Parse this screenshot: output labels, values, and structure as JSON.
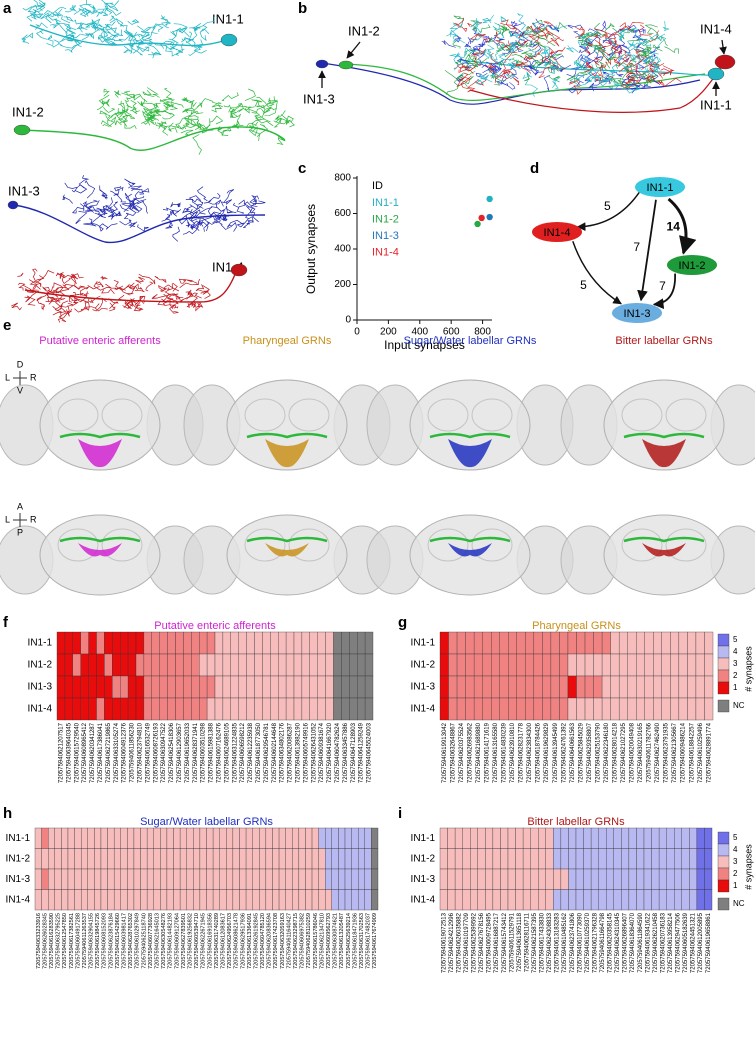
{
  "panel_labels": [
    "a",
    "b",
    "c",
    "d",
    "e",
    "f",
    "g",
    "h",
    "i"
  ],
  "neurons": [
    "IN1-1",
    "IN1-2",
    "IN1-3",
    "IN1-4"
  ],
  "chart_data": {
    "type": "scatter",
    "xlabel": "Input synapses",
    "ylabel": "Output synapses",
    "legend_title": "ID",
    "xlim": [
      0,
      860
    ],
    "ylim": [
      0,
      800
    ],
    "xticks": [
      0,
      200,
      400,
      600,
      800
    ],
    "yticks": [
      0,
      200,
      400,
      600,
      800
    ],
    "series": [
      {
        "name": "IN1-1",
        "color": "#23b1c4",
        "x": [
          845
        ],
        "values": [
          682
        ]
      },
      {
        "name": "IN1-2",
        "color": "#27a844",
        "x": [
          768
        ],
        "values": [
          541
        ]
      },
      {
        "name": "IN1-3",
        "color": "#2478b8",
        "x": [
          845
        ],
        "values": [
          580
        ]
      },
      {
        "name": "IN1-4",
        "color": "#e8202a",
        "x": [
          794
        ],
        "values": [
          575
        ]
      }
    ]
  },
  "network": {
    "nodes": [
      {
        "label": "IN1-1",
        "color": "#38c8e0"
      },
      {
        "label": "IN1-2",
        "color": "#1e9a3a"
      },
      {
        "label": "IN1-3",
        "color": "#6aaee0"
      },
      {
        "label": "IN1-4",
        "color": "#e02020"
      }
    ],
    "edges": [
      {
        "from": 0,
        "to": 3,
        "weight": 5
      },
      {
        "from": 0,
        "to": 1,
        "weight": 14
      },
      {
        "from": 0,
        "to": 2,
        "weight": 7
      },
      {
        "from": 3,
        "to": 2,
        "weight": 5
      },
      {
        "from": 1,
        "to": 2,
        "weight": 7
      }
    ]
  },
  "brains": {
    "classes": [
      {
        "name": "Putative enteric afferents",
        "color": "#d023d0"
      },
      {
        "name": "Pharyngeal GRNs",
        "color": "#c8901a"
      },
      {
        "name": "Sugar/Water labellar GRNs",
        "color": "#2030c0"
      },
      {
        "name": "Bitter labellar GRNs",
        "color": "#b01818"
      }
    ],
    "axes_front": [
      "D",
      "L",
      "R",
      "V"
    ],
    "axes_top": [
      "A",
      "L",
      "R",
      "P"
    ]
  },
  "legend": {
    "title": "# synapses",
    "levels": [
      5,
      4,
      3,
      2,
      1
    ],
    "colors": [
      "#7070e8",
      "#b9b9f2",
      "#f7bcbc",
      "#f08282",
      "#e80c0c"
    ],
    "nc_label": "NC",
    "nc_color": "#7f7f7f"
  },
  "heatmaps": [
    {
      "title": "Putative enteric afferents",
      "color": "#d023d0",
      "ids": [
        "720575940621207517",
        "720575940639640345",
        "720575940615729540",
        "720575940608965412",
        "720575940620341287",
        "720575940617386041",
        "720575940627219865",
        "720575940633105274",
        "720575940604912376",
        "720575940611856230",
        "720575940623794810",
        "720575940616532749",
        "720575940608726193",
        "720575940630947522",
        "720575940625418306",
        "720575940612903657",
        "720575940619652033",
        "720575940628371941",
        "720575940603510298",
        "720575940615981388",
        "720575940607162476",
        "720575940624689105",
        "720575940631224835",
        "720575940606598212",
        "720575940612235938",
        "720575940618773050",
        "720575940629546781",
        "720575940602144648",
        "720575940634802176",
        "720575940620086287",
        "720575940613982190",
        "720575940605749916",
        "720575940626431052",
        "720575940609381674",
        "720575940641667920",
        "720575940604782624",
        "720575940633457886",
        "720575940647128903",
        "720575940641259249",
        "720575940645524003"
      ],
      "rows": [
        [
          1,
          1,
          1,
          2,
          1,
          2,
          1,
          1,
          1,
          1,
          1,
          2,
          2,
          2,
          2,
          2,
          2,
          2,
          2,
          2,
          3,
          3,
          3,
          3,
          3,
          3,
          3,
          3,
          3,
          3,
          3,
          3,
          3,
          3,
          3,
          null,
          null,
          null,
          null,
          null
        ],
        [
          1,
          1,
          2,
          1,
          1,
          1,
          2,
          1,
          1,
          1,
          2,
          2,
          2,
          2,
          2,
          2,
          2,
          2,
          3,
          3,
          3,
          3,
          3,
          3,
          3,
          3,
          3,
          3,
          3,
          3,
          3,
          3,
          3,
          3,
          3,
          null,
          null,
          null,
          null,
          null
        ],
        [
          1,
          1,
          1,
          1,
          1,
          1,
          1,
          2,
          2,
          1,
          1,
          2,
          2,
          2,
          2,
          2,
          2,
          2,
          2,
          2,
          3,
          3,
          3,
          3,
          3,
          3,
          3,
          3,
          3,
          3,
          3,
          3,
          3,
          3,
          3,
          null,
          null,
          null,
          null,
          null
        ],
        [
          1,
          1,
          1,
          1,
          1,
          2,
          1,
          1,
          1,
          1,
          1,
          2,
          2,
          2,
          2,
          2,
          2,
          2,
          2,
          3,
          3,
          3,
          3,
          3,
          3,
          3,
          3,
          3,
          3,
          3,
          3,
          3,
          3,
          3,
          3,
          null,
          null,
          null,
          null,
          null
        ]
      ]
    },
    {
      "title": "Pharyngeal GRNs",
      "color": "#c8901a",
      "ids": [
        "720575940619913042",
        "720575940632648867",
        "720575940620375524",
        "720575940626983562",
        "720575940621689880",
        "720575940614171619",
        "720575940613165580",
        "720575940614830239",
        "720575940623910810",
        "720575940628231778",
        "720575940623834300",
        "720575940618784426",
        "720575940619629829",
        "720575940613945499",
        "720575940624761392",
        "720575940640661563",
        "720575940625845029",
        "720575940629358807",
        "720575940625153790",
        "720575940622346180",
        "720575940628014218",
        "720575940621027295",
        "720575940620049408",
        "720575940630219165",
        "720575940611782766",
        "720575940627462490",
        "720575940623791935",
        "720575940621305667",
        "720575940609486214",
        "720575940618842257",
        "720575940610259496",
        "720575940628891774"
      ],
      "rows": [
        [
          1,
          2,
          2,
          2,
          2,
          2,
          2,
          2,
          2,
          2,
          2,
          2,
          2,
          2,
          2,
          2,
          2,
          2,
          2,
          2,
          3,
          3,
          3,
          3,
          3,
          3,
          3,
          3,
          3,
          3,
          3,
          3
        ],
        [
          1,
          2,
          2,
          2,
          2,
          2,
          2,
          2,
          2,
          2,
          2,
          2,
          2,
          2,
          2,
          3,
          3,
          3,
          3,
          3,
          3,
          3,
          3,
          3,
          3,
          3,
          3,
          3,
          3,
          3,
          3,
          3
        ],
        [
          1,
          2,
          2,
          2,
          2,
          2,
          2,
          2,
          2,
          2,
          2,
          2,
          2,
          2,
          2,
          1,
          2,
          2,
          2,
          3,
          3,
          3,
          3,
          3,
          3,
          3,
          3,
          3,
          3,
          3,
          3,
          3
        ],
        [
          1,
          2,
          2,
          2,
          2,
          2,
          2,
          2,
          2,
          2,
          2,
          2,
          2,
          2,
          2,
          3,
          3,
          3,
          3,
          3,
          3,
          3,
          3,
          3,
          3,
          3,
          3,
          3,
          3,
          3,
          3,
          3
        ]
      ]
    },
    {
      "title": "Sugar/Water labellar GRNs",
      "color": "#2030c0",
      "ids": [
        "720575940633233916",
        "720575940626028345",
        "720575940616283590",
        "720575940632795225",
        "720575940612547850",
        "720575940617382561",
        "720575940604917288",
        "720575940611263537",
        "720575940632904155",
        "720575940619845726",
        "720575940608152093",
        "720575940623876184",
        "720575940615429660",
        "720575940603981417",
        "720575940628765302",
        "720575940610297849",
        "720575940625118740",
        "720575940607736928",
        "720575940621645013",
        "720575940630548276",
        "720575940614482193",
        "720575940609127064",
        "720575940627839501",
        "720575940619256832",
        "720575940605394710",
        "720575940622671945",
        "720575940616918356",
        "720575940631740289",
        "720575940612083617",
        "720575940624956703",
        "720575940608621478",
        "720575940629517936",
        "720575940613364091",
        "720575940626192845",
        "720575940604785120",
        "720575940620836594",
        "720575940617423708",
        "720575940632059163",
        "720575940611640427",
        "720575940623298715",
        "720575940606975382",
        "720575940628110259",
        "720575940615786046",
        "720575940621347810",
        "720575940609562793",
        "720575940630874621",
        "720575940613205487",
        "720575940625639214",
        "720575940618471936",
        "720575940631702563",
        "720575940617482037",
        "720575940617674909"
      ],
      "rows": [
        [
          3,
          2,
          3,
          3,
          3,
          3,
          3,
          3,
          3,
          3,
          3,
          3,
          3,
          3,
          3,
          3,
          3,
          3,
          3,
          3,
          3,
          3,
          3,
          3,
          3,
          3,
          3,
          3,
          3,
          3,
          3,
          3,
          3,
          3,
          3,
          3,
          3,
          3,
          3,
          3,
          3,
          3,
          3,
          4,
          4,
          4,
          4,
          4,
          4,
          4,
          4,
          null
        ],
        [
          3,
          3,
          3,
          3,
          3,
          3,
          3,
          3,
          3,
          3,
          3,
          3,
          3,
          3,
          3,
          3,
          3,
          3,
          3,
          3,
          3,
          3,
          3,
          3,
          3,
          3,
          3,
          3,
          3,
          3,
          3,
          3,
          3,
          3,
          3,
          3,
          3,
          3,
          3,
          3,
          3,
          3,
          3,
          3,
          4,
          4,
          4,
          4,
          4,
          4,
          4,
          null
        ],
        [
          3,
          2,
          3,
          3,
          3,
          3,
          3,
          3,
          3,
          3,
          3,
          3,
          3,
          3,
          3,
          3,
          3,
          3,
          3,
          3,
          3,
          3,
          3,
          3,
          3,
          3,
          3,
          3,
          3,
          3,
          3,
          3,
          3,
          3,
          3,
          3,
          3,
          3,
          3,
          3,
          3,
          3,
          3,
          3,
          4,
          4,
          4,
          4,
          4,
          4,
          4,
          null
        ],
        [
          3,
          3,
          3,
          3,
          3,
          3,
          3,
          3,
          3,
          3,
          3,
          3,
          3,
          3,
          3,
          3,
          3,
          3,
          3,
          3,
          3,
          3,
          3,
          3,
          3,
          3,
          3,
          3,
          3,
          3,
          3,
          3,
          3,
          3,
          3,
          3,
          3,
          3,
          3,
          3,
          3,
          3,
          3,
          3,
          3,
          4,
          4,
          4,
          4,
          4,
          4,
          null
        ]
      ]
    },
    {
      "title": "Bitter labellar GRNs",
      "color": "#b01818",
      "ids": [
        "720575940619072513",
        "720575940624212996",
        "720575940626035882",
        "720575940610197709",
        "720575940625399592",
        "720575940627678156",
        "720575940609728495",
        "720575940616887217",
        "720575940615743412",
        "720575940611529791",
        "720575940613651118",
        "720575940628116711",
        "720575940621587395",
        "720575940617433830",
        "720575940624308833",
        "720575940613183283",
        "720575940610485162",
        "720575940623741806",
        "720575940610773090",
        "720575940610259370",
        "720575940621796328",
        "720575940611664798",
        "720575940620358145",
        "720575940624310345",
        "720575940626896407",
        "720575940618364070",
        "720575940611864590",
        "720575940619341622",
        "720575940626210458",
        "720575940620736183",
        "720575940613958214",
        "720575940629477506",
        "720575940605182639",
        "720575940624451321",
        "720575940612005895",
        "720575940619658861"
      ],
      "rows": [
        [
          3,
          3,
          3,
          3,
          3,
          3,
          3,
          3,
          3,
          3,
          3,
          3,
          3,
          3,
          3,
          4,
          4,
          4,
          4,
          4,
          4,
          4,
          4,
          4,
          4,
          4,
          4,
          4,
          4,
          4,
          4,
          4,
          4,
          4,
          5,
          5
        ],
        [
          3,
          3,
          3,
          3,
          3,
          3,
          3,
          3,
          3,
          3,
          3,
          3,
          3,
          3,
          3,
          4,
          4,
          4,
          4,
          4,
          4,
          4,
          4,
          4,
          4,
          4,
          4,
          4,
          4,
          4,
          4,
          4,
          4,
          4,
          5,
          5
        ],
        [
          3,
          3,
          3,
          3,
          3,
          3,
          3,
          3,
          3,
          3,
          3,
          3,
          3,
          3,
          3,
          3,
          3,
          4,
          4,
          4,
          4,
          4,
          4,
          4,
          4,
          4,
          4,
          4,
          4,
          4,
          4,
          4,
          4,
          4,
          5,
          5
        ],
        [
          3,
          3,
          3,
          3,
          3,
          3,
          3,
          3,
          3,
          3,
          3,
          3,
          3,
          3,
          3,
          4,
          4,
          4,
          4,
          4,
          4,
          4,
          4,
          4,
          4,
          4,
          4,
          4,
          4,
          4,
          4,
          4,
          4,
          4,
          5,
          5
        ]
      ]
    }
  ]
}
